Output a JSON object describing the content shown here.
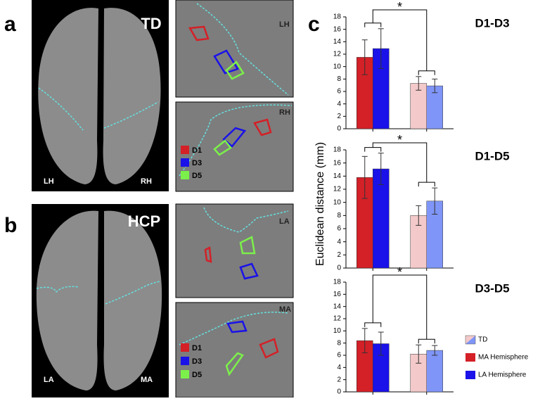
{
  "panels": [
    {
      "label": "a",
      "title": "TD",
      "hemispheres": [
        "LH",
        "RH"
      ],
      "insets": [
        {
          "label": "LH"
        },
        {
          "label": "RH",
          "legend": [
            "D1",
            "D3",
            "D5"
          ]
        }
      ]
    },
    {
      "label": "b",
      "title": "HCP",
      "hemispheres": [
        "LA",
        "MA"
      ],
      "insets": [
        {
          "label": "LA"
        },
        {
          "label": "MA",
          "legend": [
            "D1",
            "D3",
            "D5"
          ]
        }
      ]
    }
  ],
  "panel_c": {
    "label": "c",
    "y_label": "Euclidean distance (mm)"
  },
  "chart_data": [
    {
      "type": "bar",
      "title": "D1-D3",
      "categories": [
        null,
        null
      ],
      "significance": "*",
      "series": [
        {
          "colors": [
            "#d42027",
            "#f3c9c9"
          ],
          "values": [
            11.5,
            7.3
          ],
          "errors": [
            2.8,
            1.1
          ]
        },
        {
          "colors": [
            "#1a12e8",
            "#7f95f7"
          ],
          "values": [
            12.9,
            6.9
          ],
          "errors": [
            3.2,
            1.1
          ]
        }
      ],
      "ylim": [
        0,
        18
      ],
      "yticks": [
        0,
        2,
        4,
        6,
        8,
        10,
        12,
        14,
        16,
        18
      ]
    },
    {
      "type": "bar",
      "title": "D1-D5",
      "categories": [
        null,
        null
      ],
      "significance": "*",
      "series": [
        {
          "colors": [
            "#d42027",
            "#f3c9c9"
          ],
          "values": [
            13.8,
            8.0
          ],
          "errors": [
            3.2,
            1.5
          ]
        },
        {
          "colors": [
            "#1a12e8",
            "#7f95f7"
          ],
          "values": [
            15.1,
            10.2
          ],
          "errors": [
            2.4,
            2.0
          ]
        }
      ],
      "ylim": [
        0,
        18
      ],
      "yticks": [
        0,
        2,
        4,
        6,
        8,
        10,
        12,
        14,
        16,
        18
      ]
    },
    {
      "type": "bar",
      "title": "D3-D5",
      "categories": [
        null,
        null
      ],
      "significance": "*",
      "series": [
        {
          "colors": [
            "#d42027",
            "#f3c9c9"
          ],
          "values": [
            8.4,
            6.2
          ],
          "errors": [
            2.0,
            1.5
          ]
        },
        {
          "colors": [
            "#1a12e8",
            "#7f95f7"
          ],
          "values": [
            7.9,
            6.8
          ],
          "errors": [
            1.9,
            0.8
          ]
        }
      ],
      "ylim": [
        0,
        18
      ],
      "yticks": [
        0,
        2,
        4,
        6,
        8,
        10,
        12,
        14,
        16,
        18
      ],
      "legend": [
        {
          "name": "TD",
          "colors": [
            "#f3c9c9",
            "#7f95f7"
          ]
        },
        {
          "name": "MA Hemisphere",
          "color": "#d42027"
        },
        {
          "name": "LA Hemisphere",
          "color": "#1a12e8"
        }
      ]
    }
  ]
}
